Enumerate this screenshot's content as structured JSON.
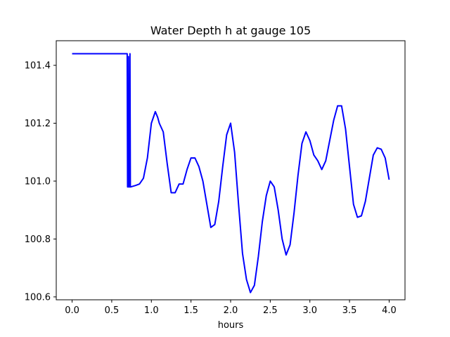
{
  "chart_data": {
    "type": "line",
    "title": "Water Depth h at gauge 105",
    "xlabel": "hours",
    "ylabel": "",
    "xlim": [
      -0.2,
      4.2
    ],
    "ylim": [
      100.59,
      101.485
    ],
    "xticks": [
      0.0,
      0.5,
      1.0,
      1.5,
      2.0,
      2.5,
      3.0,
      3.5,
      4.0
    ],
    "xtick_labels": [
      "0.0",
      "0.5",
      "1.0",
      "1.5",
      "2.0",
      "2.5",
      "3.0",
      "3.5",
      "4.0"
    ],
    "yticks": [
      100.6,
      100.8,
      101.0,
      101.2,
      101.4
    ],
    "ytick_labels": [
      "100.6",
      "100.8",
      "101.0",
      "101.2",
      "101.4"
    ],
    "grid": false,
    "legend": "none",
    "series": [
      {
        "color": "#0000ff",
        "x": [
          0.0,
          0.2,
          0.4,
          0.6,
          0.69,
          0.695,
          0.7,
          0.705,
          0.71,
          0.715,
          0.72,
          0.725,
          0.73,
          0.735,
          0.74,
          0.8,
          0.85,
          0.9,
          0.95,
          1.0,
          1.05,
          1.08,
          1.1,
          1.15,
          1.2,
          1.25,
          1.3,
          1.35,
          1.4,
          1.45,
          1.5,
          1.55,
          1.6,
          1.65,
          1.7,
          1.75,
          1.8,
          1.85,
          1.9,
          1.95,
          2.0,
          2.05,
          2.1,
          2.15,
          2.2,
          2.25,
          2.3,
          2.35,
          2.4,
          2.45,
          2.5,
          2.55,
          2.6,
          2.65,
          2.7,
          2.75,
          2.8,
          2.85,
          2.9,
          2.95,
          3.0,
          3.05,
          3.1,
          3.15,
          3.2,
          3.25,
          3.3,
          3.35,
          3.4,
          3.45,
          3.5,
          3.55,
          3.6,
          3.65,
          3.7,
          3.75,
          3.8,
          3.85,
          3.9,
          3.95,
          4.0
        ],
        "y": [
          101.44,
          101.44,
          101.44,
          101.44,
          101.44,
          101.44,
          100.98,
          100.98,
          101.43,
          100.98,
          100.98,
          100.98,
          101.44,
          100.98,
          100.98,
          100.985,
          100.99,
          101.01,
          101.08,
          101.2,
          101.24,
          101.22,
          101.2,
          101.17,
          101.06,
          100.96,
          100.96,
          100.99,
          100.99,
          101.04,
          101.08,
          101.08,
          101.05,
          101.0,
          100.92,
          100.84,
          100.85,
          100.93,
          101.05,
          101.16,
          101.2,
          101.1,
          100.92,
          100.75,
          100.66,
          100.615,
          100.64,
          100.74,
          100.86,
          100.95,
          101.0,
          100.98,
          100.9,
          100.8,
          100.745,
          100.78,
          100.89,
          101.02,
          101.13,
          101.17,
          101.14,
          101.09,
          101.07,
          101.04,
          101.07,
          101.14,
          101.21,
          101.26,
          101.26,
          101.18,
          101.05,
          100.92,
          100.875,
          100.88,
          100.93,
          101.01,
          101.09,
          101.115,
          101.11,
          101.08,
          101.005
        ]
      }
    ]
  }
}
